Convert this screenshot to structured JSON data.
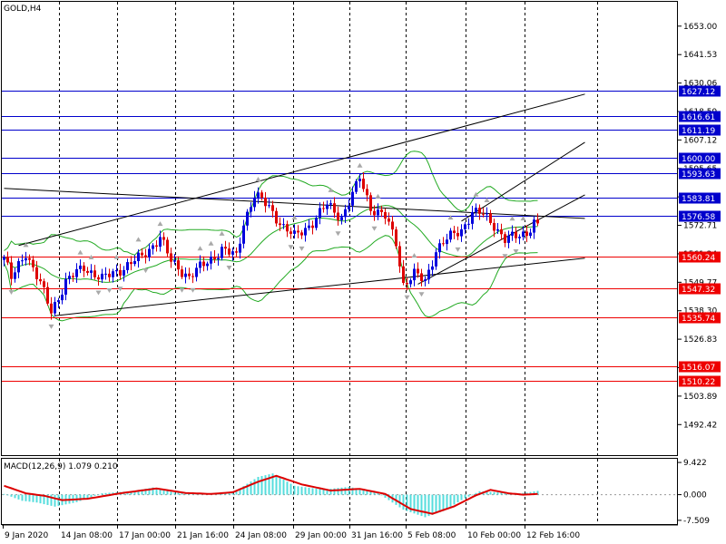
{
  "chart_data": [
    {
      "type": "candlestick",
      "title": "GOLD,H4",
      "x_ticks": [
        "9 Jan 2020",
        "14 Jan 08:00",
        "17 Jan 00:00",
        "21 Jan 16:00",
        "24 Jan 08:00",
        "29 Jan 00:00",
        "31 Jan 16:00",
        "5 Feb 08:00",
        "10 Feb 00:00",
        "12 Feb 16:00"
      ],
      "y_ticks": [
        1653.0,
        1641.53,
        1630.06,
        1618.59,
        1607.12,
        1595.65,
        1584.18,
        1572.71,
        1561.24,
        1549.77,
        1538.3,
        1526.83,
        1515.36,
        1503.89,
        1492.42
      ],
      "ylim": [
        1480.1,
        1662.8
      ],
      "grid": true,
      "price_levels": [
        {
          "value": "1627.12",
          "color": "#0000cc"
        },
        {
          "value": "1616.61",
          "color": "#0000cc"
        },
        {
          "value": "1611.19",
          "color": "#0000cc"
        },
        {
          "value": "1600.00",
          "color": "#0000cc"
        },
        {
          "value": "1593.63",
          "color": "#0000cc"
        },
        {
          "value": "1583.81",
          "color": "#0000cc"
        },
        {
          "value": "1576.58",
          "color": "#0000cc"
        },
        {
          "value": "1560.24",
          "color": "#ee0000"
        },
        {
          "value": "1547.32",
          "color": "#ee0000"
        },
        {
          "value": "1535.74",
          "color": "#ee0000"
        },
        {
          "value": "1516.07",
          "color": "#ee0000"
        },
        {
          "value": "1510.22",
          "color": "#ee0000"
        }
      ],
      "candle_colors": {
        "bull": "#0000dd",
        "bear": "#dd0000"
      },
      "band_color": "#22aa22",
      "trendline_color": "#000000",
      "fractal_color": "#a9a9a9",
      "ohlc_anchor_points": [
        {
          "x": 0,
          "value": 1560
        },
        {
          "x": 2,
          "value": 1551
        },
        {
          "x": 6,
          "value": 1562
        },
        {
          "x": 10,
          "value": 1549
        },
        {
          "x": 13,
          "value": 1538
        },
        {
          "x": 17,
          "value": 1550
        },
        {
          "x": 22,
          "value": 1556
        },
        {
          "x": 27,
          "value": 1551
        },
        {
          "x": 32,
          "value": 1555
        },
        {
          "x": 38,
          "value": 1560
        },
        {
          "x": 43,
          "value": 1568
        },
        {
          "x": 46,
          "value": 1558
        },
        {
          "x": 51,
          "value": 1552
        },
        {
          "x": 56,
          "value": 1558
        },
        {
          "x": 60,
          "value": 1563
        },
        {
          "x": 64,
          "value": 1560
        },
        {
          "x": 66,
          "value": 1574
        },
        {
          "x": 69,
          "value": 1585
        },
        {
          "x": 73,
          "value": 1580
        },
        {
          "x": 77,
          "value": 1572
        },
        {
          "x": 80,
          "value": 1568
        },
        {
          "x": 85,
          "value": 1574
        },
        {
          "x": 89,
          "value": 1581
        },
        {
          "x": 93,
          "value": 1576
        },
        {
          "x": 97,
          "value": 1588
        },
        {
          "x": 98,
          "value": 1592
        },
        {
          "x": 101,
          "value": 1580
        },
        {
          "x": 105,
          "value": 1576
        },
        {
          "x": 108,
          "value": 1566
        },
        {
          "x": 110,
          "value": 1549
        },
        {
          "x": 113,
          "value": 1553
        },
        {
          "x": 116,
          "value": 1550
        },
        {
          "x": 119,
          "value": 1563
        },
        {
          "x": 122,
          "value": 1567
        },
        {
          "x": 126,
          "value": 1571
        },
        {
          "x": 129,
          "value": 1578
        },
        {
          "x": 132,
          "value": 1577
        },
        {
          "x": 135,
          "value": 1573
        },
        {
          "x": 138,
          "value": 1567
        },
        {
          "x": 141,
          "value": 1568
        },
        {
          "x": 144,
          "value": 1570
        },
        {
          "x": 147,
          "value": 1576
        }
      ],
      "last_close": 1573.5,
      "trendlines": [
        {
          "from": {
            "x": 0,
            "value": 1587.6
          },
          "to": {
            "x": 160,
            "value": 1575.5
          }
        },
        {
          "from": {
            "x": 4,
            "value": 1564.6
          },
          "to": {
            "x": 160,
            "value": 1625.6
          }
        },
        {
          "from": {
            "x": 14,
            "value": 1536.3
          },
          "to": {
            "x": 160,
            "value": 1559.5
          }
        },
        {
          "from": {
            "x": 114,
            "value": 1549.0
          },
          "to": {
            "x": 160,
            "value": 1585.0
          }
        },
        {
          "from": {
            "x": 126,
            "value": 1574.4
          },
          "to": {
            "x": 160,
            "value": 1606.2
          }
        }
      ]
    },
    {
      "type": "bar",
      "title": "MACD(12,26,9) 1.079 0.210",
      "y_ticks": [
        "9.422",
        "0.000",
        "-7.509"
      ],
      "ylim": [
        -8.6,
        10.5
      ],
      "histogram_color": "#55dddd",
      "signal_color": "#dd0000",
      "macd_anchor_points": [
        {
          "x": 0,
          "value": 0.2
        },
        {
          "x": 5,
          "value": -1.8
        },
        {
          "x": 9,
          "value": -2.3
        },
        {
          "x": 14,
          "value": -3.5
        },
        {
          "x": 20,
          "value": -2.2
        },
        {
          "x": 27,
          "value": 0.4
        },
        {
          "x": 35,
          "value": 1.0
        },
        {
          "x": 41,
          "value": 2.1
        },
        {
          "x": 47,
          "value": 0.6
        },
        {
          "x": 55,
          "value": 0.2
        },
        {
          "x": 63,
          "value": 0.5
        },
        {
          "x": 70,
          "value": 5.2
        },
        {
          "x": 74,
          "value": 6.2
        },
        {
          "x": 80,
          "value": 2.6
        },
        {
          "x": 88,
          "value": 1.5
        },
        {
          "x": 95,
          "value": 2.3
        },
        {
          "x": 103,
          "value": 0.5
        },
        {
          "x": 110,
          "value": -4.4
        },
        {
          "x": 116,
          "value": -6.6
        },
        {
          "x": 121,
          "value": -4.8
        },
        {
          "x": 126,
          "value": -1.6
        },
        {
          "x": 131,
          "value": 1.0
        },
        {
          "x": 136,
          "value": 0.7
        },
        {
          "x": 141,
          "value": 0.3
        },
        {
          "x": 144,
          "value": 0.6
        },
        {
          "x": 147,
          "value": 1.1
        }
      ],
      "signal_anchor_points": [
        {
          "x": 0,
          "value": 2.6
        },
        {
          "x": 6,
          "value": 0.4
        },
        {
          "x": 11,
          "value": -0.3
        },
        {
          "x": 16,
          "value": -1.6
        },
        {
          "x": 23,
          "value": -1.2
        },
        {
          "x": 32,
          "value": 0.4
        },
        {
          "x": 42,
          "value": 1.8
        },
        {
          "x": 50,
          "value": 0.5
        },
        {
          "x": 57,
          "value": 0.2
        },
        {
          "x": 63,
          "value": 0.7
        },
        {
          "x": 70,
          "value": 3.8
        },
        {
          "x": 75,
          "value": 5.5
        },
        {
          "x": 82,
          "value": 3.0
        },
        {
          "x": 90,
          "value": 1.2
        },
        {
          "x": 98,
          "value": 1.7
        },
        {
          "x": 105,
          "value": 0.2
        },
        {
          "x": 112,
          "value": -4.2
        },
        {
          "x": 118,
          "value": -5.6
        },
        {
          "x": 124,
          "value": -3.4
        },
        {
          "x": 130,
          "value": -0.2
        },
        {
          "x": 134,
          "value": 1.4
        },
        {
          "x": 139,
          "value": 0.4
        },
        {
          "x": 143,
          "value": 0.0
        },
        {
          "x": 147,
          "value": 0.2
        }
      ]
    }
  ]
}
